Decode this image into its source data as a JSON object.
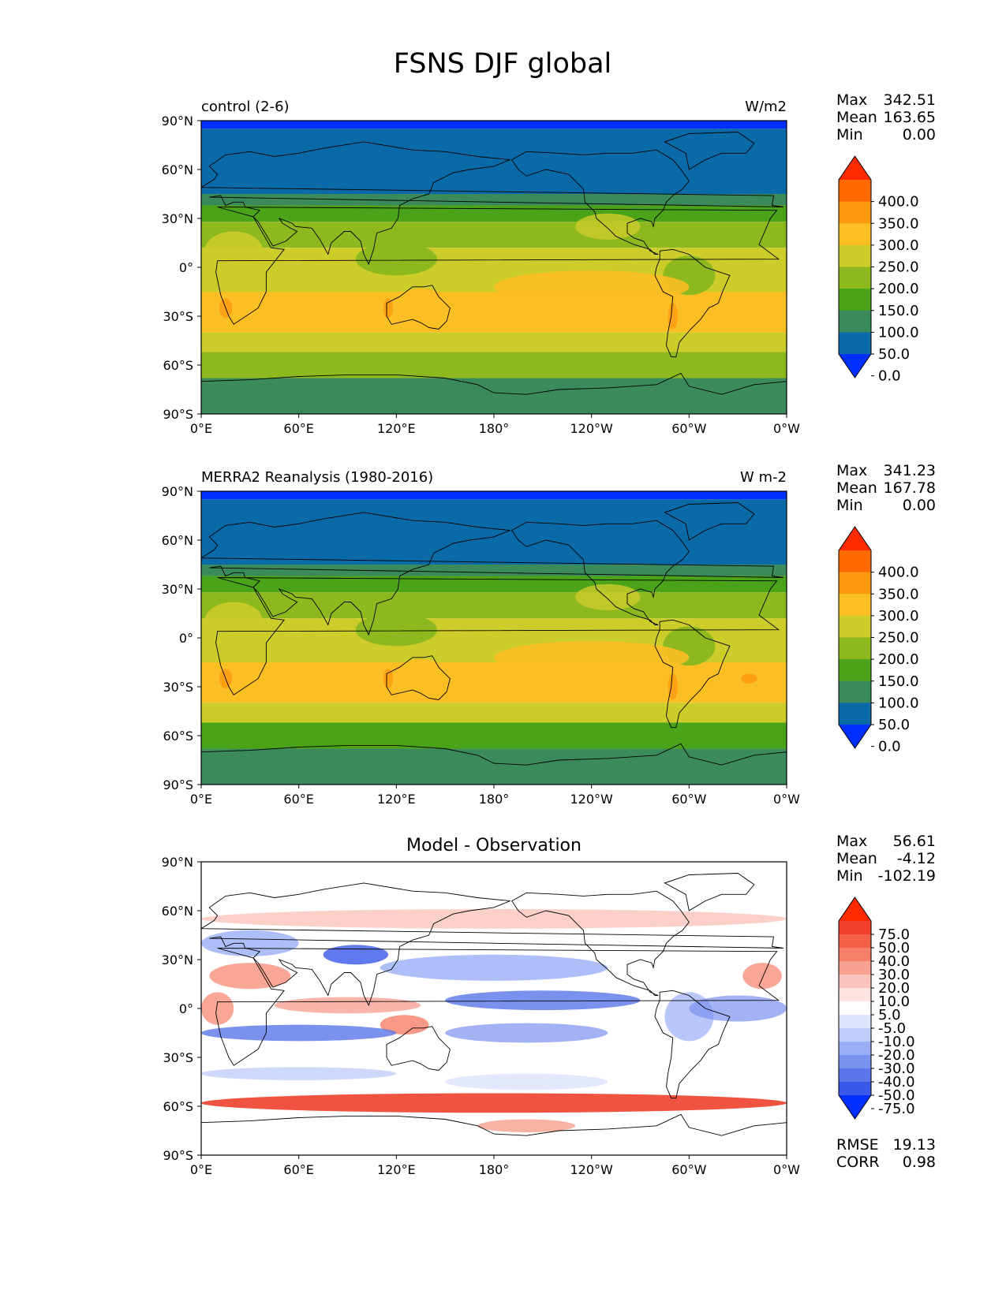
{
  "figure_title": "FSNS DJF global",
  "lat_ticks": [
    "90°N",
    "60°N",
    "30°N",
    "0°",
    "30°S",
    "60°S",
    "90°S"
  ],
  "lon_ticks": [
    "0°E",
    "60°E",
    "120°E",
    "180°",
    "120°W",
    "60°W",
    "0°W"
  ],
  "panels": [
    {
      "left_title": "control (2-6)",
      "center_title": "",
      "units": "W/m2",
      "stats": [
        {
          "label": "Max",
          "value": "342.51"
        },
        {
          "label": "Mean",
          "value": "163.65"
        },
        {
          "label": "Min",
          "value": "0.00"
        }
      ],
      "colorbar": {
        "labels": [
          "400.0",
          "350.0",
          "300.0",
          "250.0",
          "200.0",
          "150.0",
          "100.0",
          "50.0",
          "0.0"
        ],
        "colors": [
          "#ff2a00",
          "#ff6a00",
          "#ff9a10",
          "#fbbf24",
          "#cccc2a",
          "#8db81e",
          "#4aa318",
          "#3a8a5c",
          "#0a6aa8",
          "#0030ff"
        ]
      },
      "footer_stats": []
    },
    {
      "left_title": "MERRA2 Reanalysis (1980-2016)",
      "center_title": "",
      "units": "W m-2",
      "stats": [
        {
          "label": "Max",
          "value": "341.23"
        },
        {
          "label": "Mean",
          "value": "167.78"
        },
        {
          "label": "Min",
          "value": "0.00"
        }
      ],
      "colorbar": {
        "labels": [
          "400.0",
          "350.0",
          "300.0",
          "250.0",
          "200.0",
          "150.0",
          "100.0",
          "50.0",
          "0.0"
        ],
        "colors": [
          "#ff2a00",
          "#ff6a00",
          "#ff9a10",
          "#fbbf24",
          "#cccc2a",
          "#8db81e",
          "#4aa318",
          "#3a8a5c",
          "#0a6aa8",
          "#0030ff"
        ]
      },
      "footer_stats": []
    },
    {
      "left_title": "",
      "center_title": "Model - Observation",
      "units": "",
      "stats": [
        {
          "label": "Max",
          "value": "56.61"
        },
        {
          "label": "Mean",
          "value": "-4.12"
        },
        {
          "label": "Min",
          "value": "-102.19"
        }
      ],
      "colorbar": {
        "labels": [
          "75.0",
          "50.0",
          "40.0",
          "30.0",
          "20.0",
          "10.0",
          "5.0",
          "-5.0",
          "-10.0",
          "-20.0",
          "-30.0",
          "-40.0",
          "-50.0",
          "-75.0"
        ],
        "colors": [
          "#ff2a00",
          "#f0402c",
          "#f26048",
          "#f58068",
          "#f8a294",
          "#fac4bc",
          "#fde4e0",
          "#ffffff",
          "#e0e6fd",
          "#c0cefa",
          "#9aaef6",
          "#7a92f0",
          "#5a76ea",
          "#3a58ea",
          "#0030ff"
        ]
      },
      "footer_stats": [
        {
          "label": "RMSE",
          "value": "19.13"
        },
        {
          "label": "CORR",
          "value": "0.98"
        }
      ]
    }
  ],
  "map_colors": {
    "ice_blue": "#0030ff",
    "dark_blue": "#0a6aa8",
    "teal": "#3a8a5c",
    "green": "#4aa318",
    "yellow_green": "#8db81e",
    "olive": "#cccc2a",
    "orange_yellow": "#fbbf24",
    "orange": "#ff9a10",
    "coast": "#000000"
  }
}
